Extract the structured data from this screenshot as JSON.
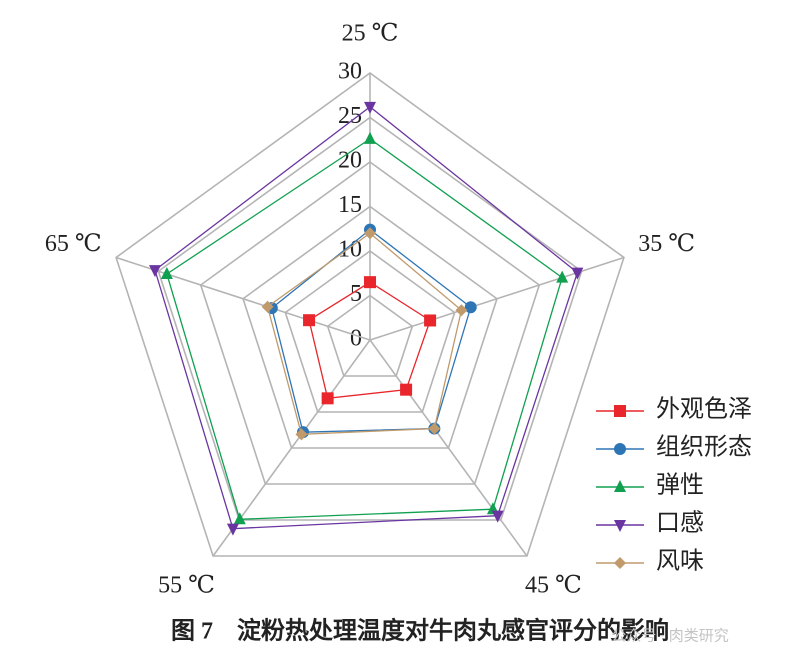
{
  "chart_data": {
    "type": "radar",
    "title": "图 7　淀粉热处理温度对牛肉丸感官评分的影响",
    "watermark": "公众号 · 肉类研究",
    "categories": [
      "25 ℃",
      "35 ℃",
      "45 ℃",
      "55 ℃",
      "65 ℃"
    ],
    "rlim": [
      0,
      30
    ],
    "rticks": [
      0,
      5,
      10,
      15,
      20,
      25,
      30
    ],
    "grid": true,
    "legend": "right",
    "series": [
      {
        "name": "外观色泽",
        "color": "#e8262b",
        "marker": "square",
        "values": [
          6.5,
          7.1,
          6.9,
          8.1,
          7.2
        ]
      },
      {
        "name": "组织形态",
        "color": "#2e75b6",
        "marker": "circle",
        "values": [
          12.4,
          11.9,
          12.3,
          12.8,
          11.6
        ]
      },
      {
        "name": "弹性",
        "color": "#10a050",
        "marker": "triangle-up",
        "values": [
          22.6,
          22.7,
          23.5,
          24.9,
          24.0
        ]
      },
      {
        "name": "口感",
        "color": "#6a35a0",
        "marker": "triangle-down",
        "values": [
          26.2,
          24.5,
          24.4,
          26.2,
          25.4
        ]
      },
      {
        "name": "风味",
        "color": "#c09a6b",
        "marker": "diamond",
        "values": [
          12.0,
          10.8,
          12.3,
          13.1,
          12.1
        ]
      }
    ]
  }
}
